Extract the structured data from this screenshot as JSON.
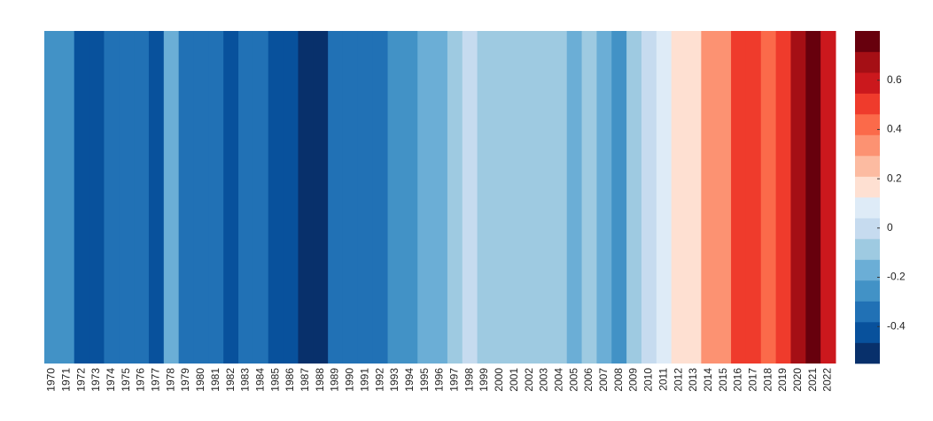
{
  "chart_data": {
    "type": "stripes",
    "categories": [
      "1970",
      "1971",
      "1972",
      "1973",
      "1974",
      "1975",
      "1976",
      "1977",
      "1978",
      "1979",
      "1980",
      "1981",
      "1982",
      "1983",
      "1984",
      "1985",
      "1986",
      "1987",
      "1988",
      "1989",
      "1990",
      "1991",
      "1992",
      "1993",
      "1994",
      "1995",
      "1996",
      "1997",
      "1998",
      "1999",
      "2000",
      "2001",
      "2002",
      "2003",
      "2004",
      "2005",
      "2006",
      "2007",
      "2008",
      "2009",
      "2010",
      "2011",
      "2012",
      "2013",
      "2014",
      "2015",
      "2016",
      "2017",
      "2018",
      "2019",
      "2020",
      "2021",
      "2022"
    ],
    "values": [
      -0.25,
      -0.25,
      -0.45,
      -0.4,
      -0.35,
      -0.3,
      -0.35,
      -0.45,
      -0.2,
      -0.3,
      -0.35,
      -0.35,
      -0.4,
      -0.35,
      -0.35,
      -0.4,
      -0.4,
      -0.5,
      -0.5,
      -0.35,
      -0.3,
      -0.3,
      -0.3,
      -0.25,
      -0.25,
      -0.2,
      -0.2,
      -0.05,
      0.0,
      -0.05,
      -0.1,
      -0.1,
      -0.05,
      -0.1,
      -0.1,
      -0.2,
      -0.1,
      -0.15,
      -0.25,
      -0.05,
      0.0,
      0.05,
      0.2,
      0.2,
      0.3,
      0.35,
      0.5,
      0.5,
      0.45,
      0.5,
      0.7,
      0.75,
      0.6
    ],
    "colors": [
      "#08306b",
      "#08519c",
      "#2171b5",
      "#4292c6",
      "#6baed6",
      "#9ecae1",
      "#c6dbef",
      "#deebf7",
      "#fee0d2",
      "#fcbba1",
      "#fc9272",
      "#fb6a4a",
      "#ef3b2c",
      "#cb181d",
      "#a50f15",
      "#67000d"
    ],
    "clim": [
      -0.55,
      0.8
    ],
    "cticks": [
      -0.4,
      -0.2,
      0,
      0.2,
      0.4,
      0.6
    ]
  }
}
